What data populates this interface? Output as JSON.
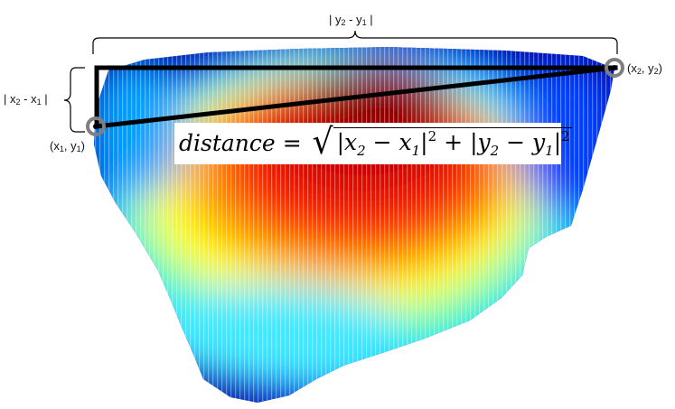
{
  "labels": {
    "top_bracket": [
      "| y",
      "2",
      " - y",
      "1",
      " |"
    ],
    "left_bracket": [
      "| x",
      "2",
      " - x",
      "1",
      " |"
    ],
    "point1": [
      "(x",
      "1",
      ", y",
      "1",
      ")"
    ],
    "point2": [
      "(x",
      "2",
      ", y",
      "2",
      ")"
    ]
  },
  "formula": {
    "lhs": "distance",
    "eq": "=",
    "term1": "|x",
    "term1_sub_a": "2",
    "term1_mid": " − x",
    "term1_sub_b": "1",
    "term1_end": "|",
    "exp1": "2",
    "plus": "+",
    "term2": "|y",
    "term2_sub_a": "2",
    "term2_mid": " − y",
    "term2_sub_b": "1",
    "term2_end": "|",
    "exp2": "2"
  },
  "colors": {
    "line": "#000000",
    "marker": "#808080",
    "heatmap": [
      "#00007f",
      "#0000ff",
      "#0080ff",
      "#00ffff",
      "#80ff80",
      "#ffff00",
      "#ff8000",
      "#ff0000",
      "#7f0000"
    ]
  }
}
